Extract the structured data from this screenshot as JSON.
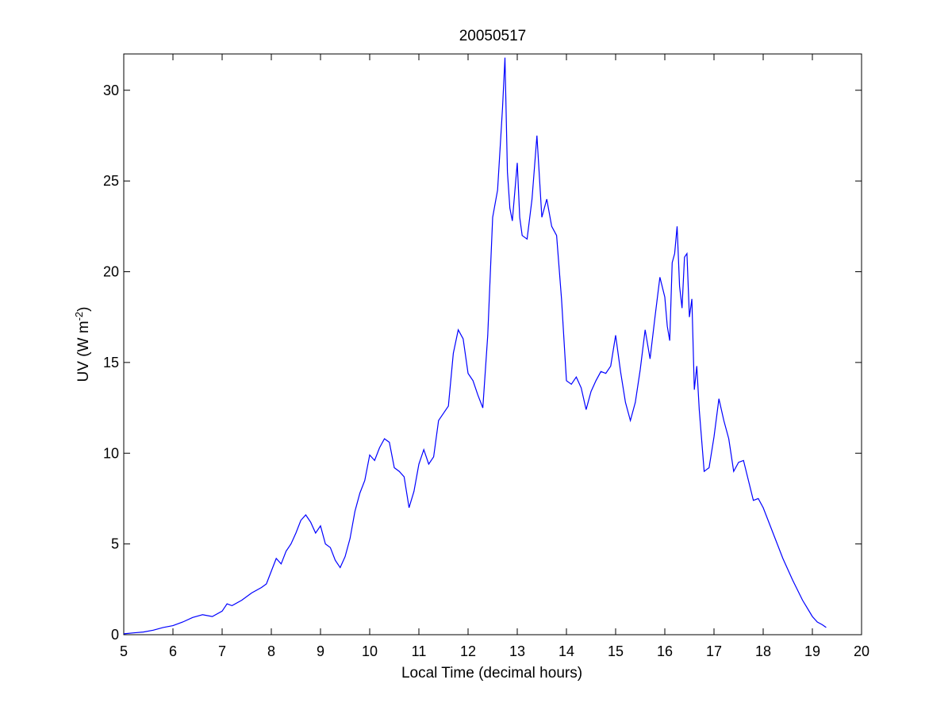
{
  "chart_data": {
    "type": "line",
    "title": "20050517",
    "xlabel": "Local Time (decimal hours)",
    "ylabel": {
      "main": "UV (W m",
      "superscript": "-2",
      "close": ")"
    },
    "xlim": [
      5,
      20
    ],
    "ylim": [
      0,
      32
    ],
    "x_ticks": [
      5,
      6,
      7,
      8,
      9,
      10,
      11,
      12,
      13,
      14,
      15,
      16,
      17,
      18,
      19,
      20
    ],
    "y_ticks": [
      0,
      5,
      10,
      15,
      20,
      25,
      30
    ],
    "grid": false,
    "line_color": "#0000ff",
    "series": [
      {
        "x": [
          5.0,
          5.2,
          5.4,
          5.6,
          5.8,
          6.0,
          6.2,
          6.4,
          6.6,
          6.8,
          7.0,
          7.1,
          7.2,
          7.4,
          7.6,
          7.8,
          7.9,
          8.0,
          8.1,
          8.2,
          8.3,
          8.4,
          8.5,
          8.6,
          8.7,
          8.8,
          8.9,
          9.0,
          9.1,
          9.2,
          9.3,
          9.4,
          9.5,
          9.6,
          9.7,
          9.8,
          9.9,
          10.0,
          10.1,
          10.2,
          10.3,
          10.4,
          10.5,
          10.6,
          10.7,
          10.8,
          10.9,
          11.0,
          11.1,
          11.2,
          11.3,
          11.4,
          11.5,
          11.6,
          11.7,
          11.8,
          11.9,
          12.0,
          12.1,
          12.2,
          12.3,
          12.4,
          12.5,
          12.6,
          12.7,
          12.75,
          12.8,
          12.85,
          12.9,
          13.0,
          13.05,
          13.1,
          13.2,
          13.3,
          13.4,
          13.5,
          13.6,
          13.7,
          13.8,
          13.9,
          14.0,
          14.1,
          14.2,
          14.3,
          14.4,
          14.5,
          14.6,
          14.7,
          14.8,
          14.9,
          15.0,
          15.1,
          15.2,
          15.3,
          15.4,
          15.5,
          15.6,
          15.7,
          15.8,
          15.9,
          16.0,
          16.05,
          16.1,
          16.15,
          16.2,
          16.25,
          16.3,
          16.35,
          16.4,
          16.45,
          16.5,
          16.55,
          16.6,
          16.65,
          16.7,
          16.8,
          16.9,
          17.0,
          17.1,
          17.2,
          17.3,
          17.4,
          17.5,
          17.6,
          17.7,
          17.8,
          17.9,
          18.0,
          18.2,
          18.4,
          18.6,
          18.8,
          19.0,
          19.1,
          19.2,
          19.28
        ],
        "y": [
          0.05,
          0.1,
          0.15,
          0.25,
          0.4,
          0.5,
          0.7,
          0.95,
          1.1,
          1.0,
          1.3,
          1.7,
          1.6,
          1.9,
          2.3,
          2.6,
          2.8,
          3.5,
          4.2,
          3.9,
          4.6,
          5.0,
          5.6,
          6.3,
          6.6,
          6.2,
          5.6,
          6.0,
          5.0,
          4.8,
          4.1,
          3.7,
          4.3,
          5.3,
          6.8,
          7.8,
          8.5,
          9.9,
          9.6,
          10.3,
          10.8,
          10.6,
          9.2,
          9.0,
          8.7,
          7.0,
          7.9,
          9.4,
          10.2,
          9.4,
          9.8,
          11.8,
          12.2,
          12.6,
          15.5,
          16.8,
          16.3,
          14.4,
          14.0,
          13.2,
          12.5,
          16.5,
          23.0,
          24.5,
          29.0,
          31.8,
          25.5,
          23.5,
          22.8,
          26.0,
          23.0,
          22.0,
          21.8,
          24.0,
          27.5,
          23.0,
          24.0,
          22.5,
          22.0,
          18.5,
          14.0,
          13.8,
          14.2,
          13.6,
          12.4,
          13.4,
          14.0,
          14.5,
          14.4,
          14.8,
          16.5,
          14.5,
          12.8,
          11.8,
          12.8,
          14.6,
          16.8,
          15.2,
          17.5,
          19.7,
          18.6,
          17.0,
          16.2,
          20.5,
          21.0,
          22.5,
          19.2,
          18.0,
          20.8,
          21.0,
          17.5,
          18.5,
          13.5,
          14.8,
          12.4,
          9.0,
          9.2,
          10.9,
          13.0,
          11.8,
          10.8,
          9.0,
          9.5,
          9.6,
          8.5,
          7.4,
          7.5,
          7.0,
          5.6,
          4.2,
          3.0,
          1.9,
          1.0,
          0.7,
          0.55,
          0.4
        ]
      }
    ]
  }
}
